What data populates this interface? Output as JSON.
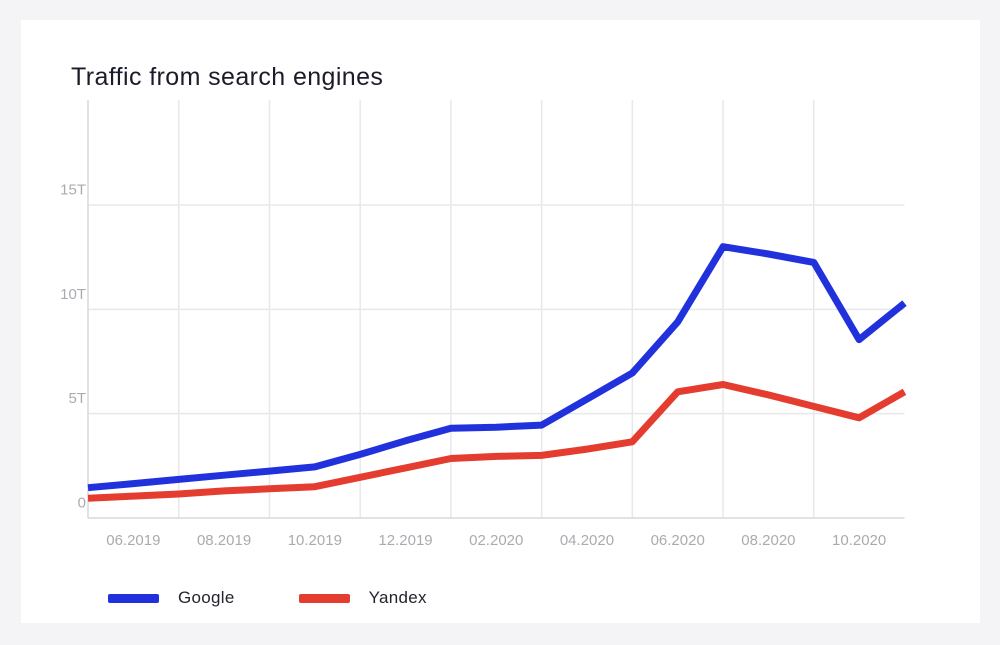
{
  "chart_data": {
    "type": "line",
    "title": "Traffic from search engines",
    "x": [
      "05.2019",
      "06.2019",
      "07.2019",
      "08.2019",
      "09.2019",
      "10.2019",
      "11.2019",
      "12.2019",
      "01.2020",
      "02.2020",
      "03.2020",
      "04.2020",
      "05.2020",
      "06.2020",
      "07.2020",
      "08.2020",
      "09.2020",
      "10.2020",
      "11.2020"
    ],
    "x_axis_labels_shown": [
      "06.2019",
      "08.2019",
      "10.2019",
      "12.2019",
      "02.2020",
      "04.2020",
      "06.2020",
      "08.2020",
      "10.2020"
    ],
    "y_ticks": [
      {
        "value": 0,
        "label": "0"
      },
      {
        "value": 5,
        "label": "5T"
      },
      {
        "value": 10,
        "label": "10T"
      },
      {
        "value": 15,
        "label": "15T"
      }
    ],
    "ylim": [
      0,
      20
    ],
    "unit": "T",
    "grid": true,
    "legend_position": "bottom",
    "series": [
      {
        "name": "Google",
        "color": "#2132dd",
        "values": [
          1.45,
          1.65,
          1.85,
          2.05,
          2.25,
          2.45,
          3.05,
          3.7,
          4.3,
          4.35,
          4.45,
          5.7,
          6.95,
          9.4,
          13.0,
          12.65,
          12.25,
          8.55,
          10.3
        ]
      },
      {
        "name": "Yandex",
        "color": "#e53c30",
        "values": [
          0.95,
          1.05,
          1.15,
          1.3,
          1.4,
          1.5,
          1.95,
          2.4,
          2.85,
          2.95,
          3.0,
          3.3,
          3.65,
          6.05,
          6.4,
          5.9,
          5.35,
          4.8,
          6.05
        ]
      }
    ],
    "colors": {
      "grid": "#e7e8ea",
      "axis": "#d7d8da",
      "tick_label": "#a9abb0",
      "title_text": "#1b1c2b",
      "card_background": "#ffffff",
      "page_background": "#f4f4f6"
    }
  }
}
